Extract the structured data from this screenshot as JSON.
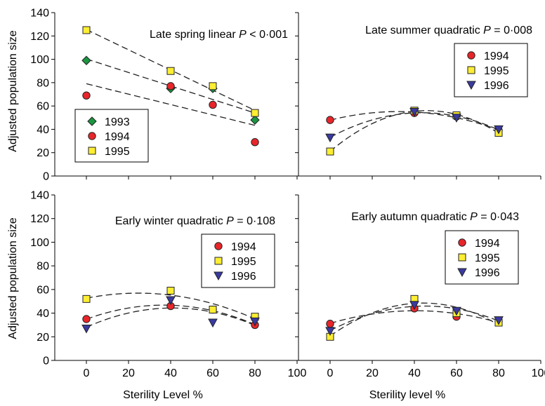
{
  "figure": {
    "ylabel": "Adjusted population size",
    "xlabel_left": "Sterility Level %",
    "xlabel_right": "Sterility level %",
    "x_ticks": [
      "0",
      "20",
      "40",
      "60",
      "80",
      "100"
    ],
    "y_ticks": [
      "0",
      "20",
      "40",
      "60",
      "80",
      "100",
      "120",
      "140"
    ]
  },
  "colors": {
    "1993": "#1a9641",
    "1994": "#e8262a",
    "1995": "#ffee33",
    "1996": "#3a3aa0"
  },
  "chart_data": [
    {
      "type": "scatter",
      "title_text": "Late spring linear ",
      "title_p": "P",
      "title_value": " < 0·001",
      "fit": "linear",
      "xlim": [
        -15,
        100
      ],
      "ylim": [
        0,
        140
      ],
      "legend": [
        "1993",
        "1994",
        "1995"
      ],
      "series": [
        {
          "name": "1993",
          "marker": "diamond",
          "x": [
            0,
            40,
            60,
            80
          ],
          "y": [
            99,
            75,
            75,
            48
          ]
        },
        {
          "name": "1994",
          "marker": "circle",
          "x": [
            0,
            40,
            60,
            80
          ],
          "y": [
            69,
            77,
            61,
            29
          ]
        },
        {
          "name": "1995",
          "marker": "square",
          "x": [
            0,
            40,
            60,
            80
          ],
          "y": [
            125,
            90,
            77,
            54
          ]
        }
      ]
    },
    {
      "type": "scatter",
      "title_text": "Late summer quadratic ",
      "title_p": "P",
      "title_value": " = 0·008",
      "fit": "quadratic",
      "xlim": [
        -15,
        100
      ],
      "ylim": [
        0,
        140
      ],
      "legend": [
        "1994",
        "1995",
        "1996"
      ],
      "series": [
        {
          "name": "1994",
          "marker": "circle",
          "x": [
            0,
            40,
            60,
            80
          ],
          "y": [
            48,
            54,
            51,
            39
          ]
        },
        {
          "name": "1995",
          "marker": "square",
          "x": [
            0,
            40,
            60,
            80
          ],
          "y": [
            21,
            56,
            52,
            37
          ]
        },
        {
          "name": "1996",
          "marker": "triangle",
          "x": [
            0,
            40,
            60,
            80
          ],
          "y": [
            33,
            55,
            50,
            40
          ]
        }
      ]
    },
    {
      "type": "scatter",
      "title_text": "Early winter quadratic ",
      "title_p": "P",
      "title_value": " = 0·108",
      "fit": "quadratic",
      "xlim": [
        -15,
        100
      ],
      "ylim": [
        0,
        140
      ],
      "legend": [
        "1994",
        "1995",
        "1996"
      ],
      "series": [
        {
          "name": "1994",
          "marker": "circle",
          "x": [
            0,
            40,
            60,
            80
          ],
          "y": [
            35,
            46,
            43,
            30
          ]
        },
        {
          "name": "1995",
          "marker": "square",
          "x": [
            0,
            40,
            60,
            80
          ],
          "y": [
            52,
            59,
            43,
            37
          ]
        },
        {
          "name": "1996",
          "marker": "triangle",
          "x": [
            0,
            40,
            60,
            80
          ],
          "y": [
            27,
            51,
            32,
            33
          ]
        }
      ]
    },
    {
      "type": "scatter",
      "title_text": "Early autumn quadratic ",
      "title_p": "P",
      "title_value": " = 0·043",
      "fit": "quadratic",
      "xlim": [
        -15,
        100
      ],
      "ylim": [
        0,
        140
      ],
      "legend": [
        "1994",
        "1995",
        "1996"
      ],
      "series": [
        {
          "name": "1994",
          "marker": "circle",
          "x": [
            0,
            40,
            60,
            80
          ],
          "y": [
            31,
            44,
            37,
            33
          ]
        },
        {
          "name": "1995",
          "marker": "square",
          "x": [
            0,
            40,
            60,
            80
          ],
          "y": [
            20,
            52,
            40,
            32
          ]
        },
        {
          "name": "1996",
          "marker": "triangle",
          "x": [
            0,
            40,
            60,
            80
          ],
          "y": [
            25,
            47,
            42,
            34
          ]
        }
      ]
    }
  ]
}
